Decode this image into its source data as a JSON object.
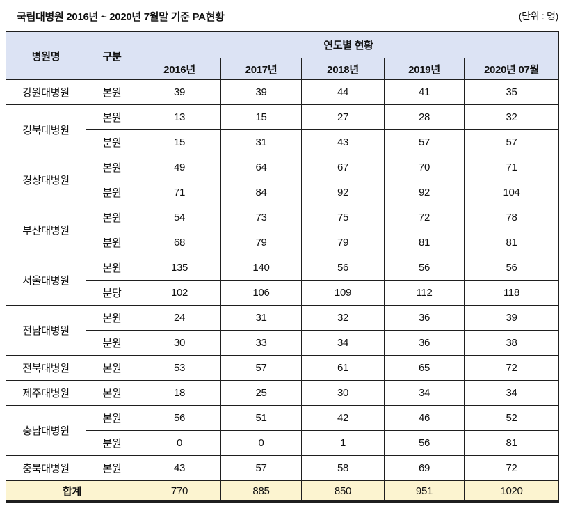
{
  "page": {
    "title": "국립대병원 2016년 ~ 2020년 7월말 기준 PA현황",
    "unit_label": "(단위 : 명)"
  },
  "table": {
    "headers": {
      "hospital": "병원명",
      "division": "구분",
      "group": "연도별 현황",
      "years": [
        "2016년",
        "2017년",
        "2018년",
        "2019년",
        "2020년 07월"
      ]
    },
    "groups": [
      {
        "hospital": "강원대병원",
        "rows": [
          {
            "division": "본원",
            "values": [
              "39",
              "39",
              "44",
              "41",
              "35"
            ]
          }
        ]
      },
      {
        "hospital": "경북대병원",
        "rows": [
          {
            "division": "본원",
            "values": [
              "13",
              "15",
              "27",
              "28",
              "32"
            ]
          },
          {
            "division": "분원",
            "values": [
              "15",
              "31",
              "43",
              "57",
              "57"
            ]
          }
        ]
      },
      {
        "hospital": "경상대병원",
        "rows": [
          {
            "division": "본원",
            "values": [
              "49",
              "64",
              "67",
              "70",
              "71"
            ]
          },
          {
            "division": "분원",
            "values": [
              "71",
              "84",
              "92",
              "92",
              "104"
            ]
          }
        ]
      },
      {
        "hospital": "부산대병원",
        "rows": [
          {
            "division": "본원",
            "values": [
              "54",
              "73",
              "75",
              "72",
              "78"
            ]
          },
          {
            "division": "분원",
            "values": [
              "68",
              "79",
              "79",
              "81",
              "81"
            ]
          }
        ]
      },
      {
        "hospital": "서울대병원",
        "rows": [
          {
            "division": "본원",
            "values": [
              "135",
              "140",
              "56",
              "56",
              "56"
            ]
          },
          {
            "division": "분당",
            "values": [
              "102",
              "106",
              "109",
              "112",
              "118"
            ]
          }
        ]
      },
      {
        "hospital": "전남대병원",
        "rows": [
          {
            "division": "본원",
            "values": [
              "24",
              "31",
              "32",
              "36",
              "39"
            ]
          },
          {
            "division": "분원",
            "values": [
              "30",
              "33",
              "34",
              "36",
              "38"
            ]
          }
        ]
      },
      {
        "hospital": "전북대병원",
        "rows": [
          {
            "division": "본원",
            "values": [
              "53",
              "57",
              "61",
              "65",
              "72"
            ]
          }
        ]
      },
      {
        "hospital": "제주대병원",
        "rows": [
          {
            "division": "본원",
            "values": [
              "18",
              "25",
              "30",
              "34",
              "34"
            ]
          }
        ]
      },
      {
        "hospital": "충남대병원",
        "rows": [
          {
            "division": "본원",
            "values": [
              "56",
              "51",
              "42",
              "46",
              "52"
            ]
          },
          {
            "division": "분원",
            "values": [
              "0",
              "0",
              "1",
              "56",
              "81"
            ]
          }
        ]
      },
      {
        "hospital": "충북대병원",
        "rows": [
          {
            "division": "본원",
            "values": [
              "43",
              "57",
              "58",
              "69",
              "72"
            ]
          }
        ]
      }
    ],
    "total": {
      "label": "합계",
      "values": [
        "770",
        "885",
        "850",
        "951",
        "1020"
      ]
    },
    "colors": {
      "header_bg": "#dce3f4",
      "total_bg": "#fcf4d0",
      "border": "#1f1f1f",
      "page_bg": "#ffffff"
    }
  }
}
